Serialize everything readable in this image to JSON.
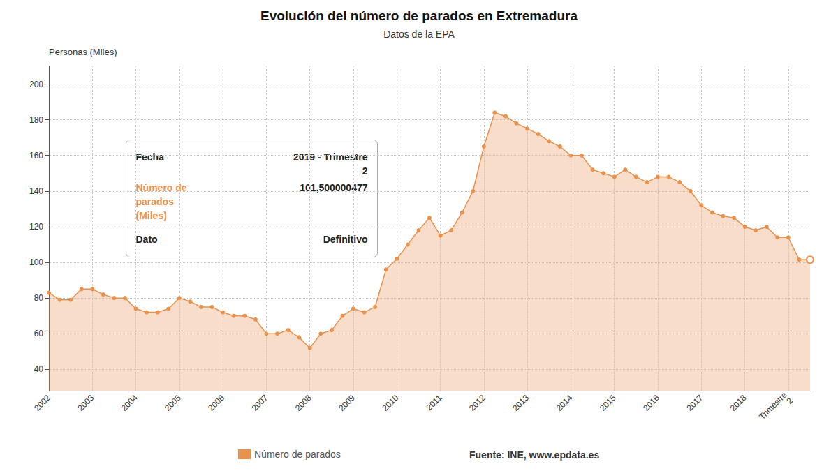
{
  "chart_data": {
    "type": "line",
    "title": "Evolución del número de parados en Extremadura",
    "subtitle": "Datos de la EPA",
    "y_label": "Personas (Miles)",
    "source": "Fuente: INE, www.epdata.es",
    "categories": [
      "2002",
      null,
      null,
      null,
      "2003",
      null,
      null,
      null,
      "2004",
      null,
      null,
      null,
      "2005",
      null,
      null,
      null,
      "2006",
      null,
      null,
      null,
      "2007",
      null,
      null,
      null,
      "2008",
      null,
      null,
      null,
      "2009",
      null,
      null,
      null,
      "2010",
      null,
      null,
      null,
      "2011",
      null,
      null,
      null,
      "2012",
      null,
      null,
      null,
      "2013",
      null,
      null,
      null,
      "2014",
      null,
      null,
      null,
      "2015",
      null,
      null,
      null,
      "2016",
      null,
      null,
      null,
      "2017",
      null,
      null,
      null,
      "2018",
      null,
      null,
      null,
      "Trimestre\n2",
      null,
      null
    ],
    "series": [
      {
        "name": "Número de parados",
        "color": "#e8924e",
        "values": [
          83,
          79,
          79,
          85,
          85,
          82,
          80,
          80,
          74,
          72,
          72,
          74,
          80,
          78,
          75,
          75,
          72,
          70,
          70,
          68,
          60,
          60,
          62,
          58,
          52,
          60,
          62,
          70,
          74,
          72,
          75,
          96,
          102,
          110,
          118,
          125,
          115,
          118,
          128,
          140,
          165,
          184,
          182,
          178,
          175,
          172,
          168,
          165,
          160,
          160,
          152,
          150,
          148,
          152,
          148,
          145,
          148,
          148,
          145,
          140,
          132,
          128,
          126,
          125,
          120,
          118,
          120,
          114,
          114,
          101.5,
          101.5
        ]
      }
    ],
    "ylim": [
      28,
      210
    ],
    "yticks": [
      40,
      60,
      80,
      100,
      120,
      140,
      160,
      180,
      200
    ],
    "grid": true,
    "legend": "bottom",
    "annotations": [
      [
        "Fecha",
        "2019 - Trimestre\n2"
      ],
      [
        "Número de\nparados\n(Miles)",
        "101,500000477"
      ],
      [
        "Dato",
        "Definitivo"
      ]
    ]
  }
}
